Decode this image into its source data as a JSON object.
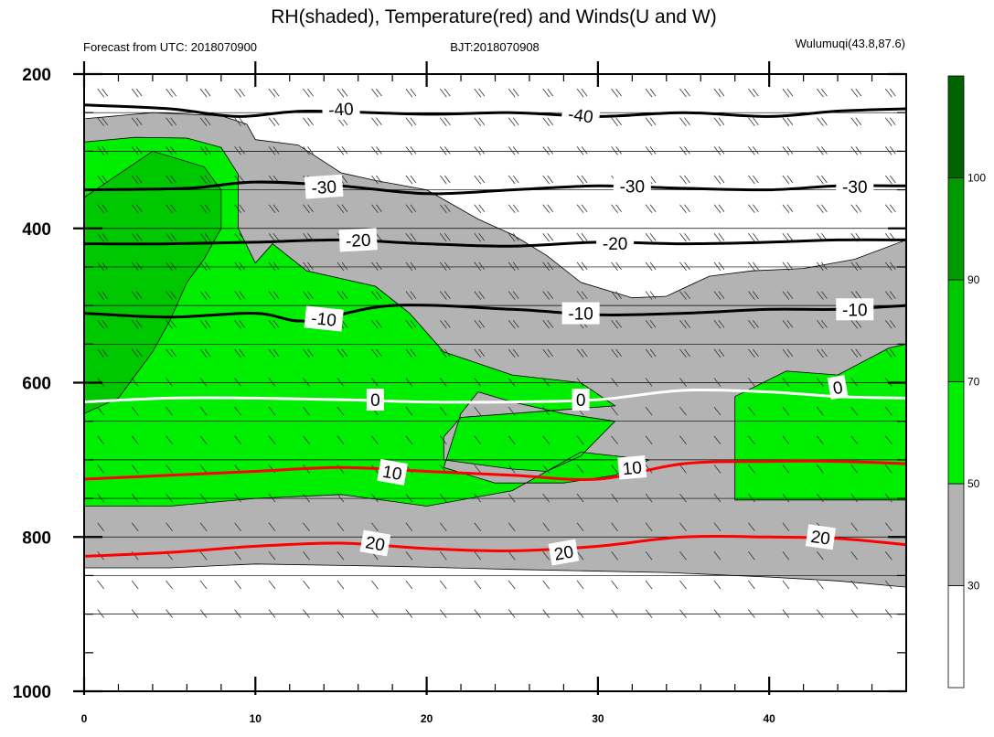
{
  "chart_data": {
    "type": "contour",
    "title": "RH(shaded), Temperature(red) and Winds(U and W)",
    "subtitle_left": "Forecast from UTC: 2018070900",
    "subtitle_center": "BJT:2018070908",
    "subtitle_right": "Wulumuqi(43.8,87.6)",
    "xlim": [
      0,
      48
    ],
    "ylim": [
      1000,
      200
    ],
    "y_reversed": true,
    "x_ticks": [
      "0",
      "10",
      "20",
      "30",
      "40"
    ],
    "y_ticks": [
      "200",
      "400",
      "600",
      "800",
      "1000"
    ],
    "colorbar": {
      "levels": [
        "30",
        "50",
        "70",
        "90",
        "100"
      ],
      "colors": [
        "#ffffff",
        "#b3b3b3",
        "#00ee00",
        "#00c800",
        "#009900",
        "#006400"
      ]
    },
    "rh_regions": [
      {
        "level": "gray",
        "color": "#b3b3b3",
        "points": [
          [
            0,
            258
          ],
          [
            4,
            250
          ],
          [
            8,
            254
          ],
          [
            9.5,
            265
          ],
          [
            10,
            285
          ],
          [
            12.5,
            292
          ],
          [
            15,
            328
          ],
          [
            17,
            338
          ],
          [
            20,
            350
          ],
          [
            23,
            388
          ],
          [
            25,
            408
          ],
          [
            27,
            435
          ],
          [
            29,
            470
          ],
          [
            32,
            490
          ],
          [
            34,
            488
          ],
          [
            36.5,
            462
          ],
          [
            39,
            455
          ],
          [
            42,
            452
          ],
          [
            45,
            440
          ],
          [
            48,
            415
          ],
          [
            48,
            865
          ],
          [
            44,
            857
          ],
          [
            40,
            852
          ],
          [
            34,
            846
          ],
          [
            25,
            842
          ],
          [
            18,
            838
          ],
          [
            10,
            835
          ],
          [
            5,
            840
          ],
          [
            0,
            840
          ]
        ]
      },
      {
        "level": "green",
        "color": "#00ee00",
        "points": [
          [
            0,
            288
          ],
          [
            3,
            282
          ],
          [
            6,
            283
          ],
          [
            8,
            295
          ],
          [
            9,
            330
          ],
          [
            9,
            400
          ],
          [
            10,
            445
          ],
          [
            11,
            420
          ],
          [
            13,
            455
          ],
          [
            15,
            465
          ],
          [
            17,
            475
          ],
          [
            19,
            510
          ],
          [
            21,
            560
          ],
          [
            25,
            590
          ],
          [
            29,
            600
          ],
          [
            31,
            630
          ],
          [
            22,
            645
          ],
          [
            21,
            670
          ],
          [
            21,
            700
          ],
          [
            25,
            712
          ],
          [
            27,
            715
          ],
          [
            29,
            695
          ],
          [
            31,
            650
          ],
          [
            28,
            640
          ],
          [
            25,
            625
          ],
          [
            23,
            612
          ],
          [
            22,
            640
          ],
          [
            21,
            710
          ],
          [
            24,
            730
          ],
          [
            28,
            730
          ],
          [
            31,
            720
          ],
          [
            33,
            700
          ],
          [
            29,
            690
          ],
          [
            25,
            740
          ],
          [
            20,
            760
          ],
          [
            15,
            745
          ],
          [
            10,
            750
          ],
          [
            5,
            760
          ],
          [
            0,
            760
          ]
        ]
      },
      {
        "level": "green",
        "color": "#00ee00",
        "points": [
          [
            38,
            618
          ],
          [
            41,
            585
          ],
          [
            44,
            590
          ],
          [
            47,
            555
          ],
          [
            48,
            550
          ],
          [
            48,
            752
          ],
          [
            38,
            752
          ]
        ]
      },
      {
        "level": "green_dark",
        "color": "#00c800",
        "points": [
          [
            0,
            360
          ],
          [
            4,
            300
          ],
          [
            7,
            320
          ],
          [
            8,
            350
          ],
          [
            8,
            400
          ],
          [
            7,
            440
          ],
          [
            6,
            470
          ],
          [
            5,
            520
          ],
          [
            4,
            560
          ],
          [
            2,
            620
          ],
          [
            0,
            640
          ]
        ]
      }
    ],
    "temperature_isotherms": [
      {
        "label": "-40",
        "color": "#000000",
        "points": [
          [
            0,
            240
          ],
          [
            5,
            245
          ],
          [
            9,
            255
          ],
          [
            13,
            248
          ],
          [
            20,
            252
          ],
          [
            25,
            250
          ],
          [
            30,
            255
          ],
          [
            35,
            250
          ],
          [
            40,
            255
          ],
          [
            44,
            248
          ],
          [
            48,
            245
          ]
        ]
      },
      {
        "label": "-30",
        "color": "#000000",
        "points": [
          [
            0,
            350
          ],
          [
            6,
            348
          ],
          [
            10,
            340
          ],
          [
            15,
            345
          ],
          [
            20,
            355
          ],
          [
            25,
            350
          ],
          [
            30,
            345
          ],
          [
            35,
            348
          ],
          [
            40,
            350
          ],
          [
            44,
            345
          ],
          [
            48,
            345
          ]
        ]
      },
      {
        "label": "-20",
        "color": "#000000",
        "points": [
          [
            0,
            420
          ],
          [
            5,
            420
          ],
          [
            10,
            418
          ],
          [
            15,
            415
          ],
          [
            20,
            420
          ],
          [
            25,
            423
          ],
          [
            30,
            418
          ],
          [
            35,
            420
          ],
          [
            40,
            418
          ],
          [
            44,
            415
          ],
          [
            48,
            415
          ]
        ]
      },
      {
        "label": "-10",
        "color": "#000000",
        "points": [
          [
            0,
            510
          ],
          [
            5,
            515
          ],
          [
            10,
            510
          ],
          [
            13,
            520
          ],
          [
            18,
            500
          ],
          [
            25,
            505
          ],
          [
            30,
            512
          ],
          [
            35,
            510
          ],
          [
            40,
            505
          ],
          [
            44,
            505
          ],
          [
            48,
            500
          ]
        ]
      },
      {
        "label": "0",
        "color": "#ffffff",
        "points": [
          [
            0,
            625
          ],
          [
            5,
            620
          ],
          [
            10,
            620
          ],
          [
            15,
            622
          ],
          [
            20,
            625
          ],
          [
            25,
            625
          ],
          [
            30,
            622
          ],
          [
            35,
            610
          ],
          [
            40,
            612
          ],
          [
            44,
            618
          ],
          [
            48,
            620
          ]
        ]
      },
      {
        "label": "10",
        "color": "#ff0000",
        "points": [
          [
            0,
            725
          ],
          [
            5,
            720
          ],
          [
            10,
            715
          ],
          [
            15,
            710
          ],
          [
            20,
            715
          ],
          [
            25,
            720
          ],
          [
            30,
            725
          ],
          [
            35,
            705
          ],
          [
            40,
            702
          ],
          [
            44,
            702
          ],
          [
            48,
            705
          ]
        ]
      },
      {
        "label": "20",
        "color": "#ff0000",
        "points": [
          [
            0,
            825
          ],
          [
            5,
            820
          ],
          [
            10,
            812
          ],
          [
            15,
            808
          ],
          [
            20,
            815
          ],
          [
            25,
            818
          ],
          [
            30,
            812
          ],
          [
            35,
            800
          ],
          [
            40,
            800
          ],
          [
            44,
            802
          ],
          [
            48,
            810
          ]
        ]
      }
    ],
    "temperature_labels": [
      {
        "text": "-40",
        "x": 15,
        "y": 245,
        "angle": -3
      },
      {
        "text": "-40",
        "x": 29,
        "y": 253,
        "angle": 8
      },
      {
        "text": "-30",
        "x": 14,
        "y": 346,
        "angle": -4
      },
      {
        "text": "-30",
        "x": 32,
        "y": 345,
        "angle": 0
      },
      {
        "text": "-30",
        "x": 45,
        "y": 346,
        "angle": 0
      },
      {
        "text": "-20",
        "x": 16,
        "y": 415,
        "angle": -3
      },
      {
        "text": "-20",
        "x": 31,
        "y": 419,
        "angle": 0
      },
      {
        "text": "-10",
        "x": 14,
        "y": 517,
        "angle": 6
      },
      {
        "text": "-10",
        "x": 29,
        "y": 510,
        "angle": 0
      },
      {
        "text": "-10",
        "x": 45,
        "y": 505,
        "angle": 0
      },
      {
        "text": "0",
        "x": 17,
        "y": 622,
        "angle": 0
      },
      {
        "text": "0",
        "x": 29,
        "y": 622,
        "angle": 0
      },
      {
        "text": "0",
        "x": 44,
        "y": 606,
        "angle": -10
      },
      {
        "text": "10",
        "x": 18,
        "y": 716,
        "angle": 10
      },
      {
        "text": "10",
        "x": 32,
        "y": 710,
        "angle": -5
      },
      {
        "text": "20",
        "x": 17,
        "y": 808,
        "angle": 10
      },
      {
        "text": "20",
        "x": 28,
        "y": 820,
        "angle": -10
      },
      {
        "text": "20",
        "x": 43,
        "y": 800,
        "angle": 8
      }
    ]
  }
}
